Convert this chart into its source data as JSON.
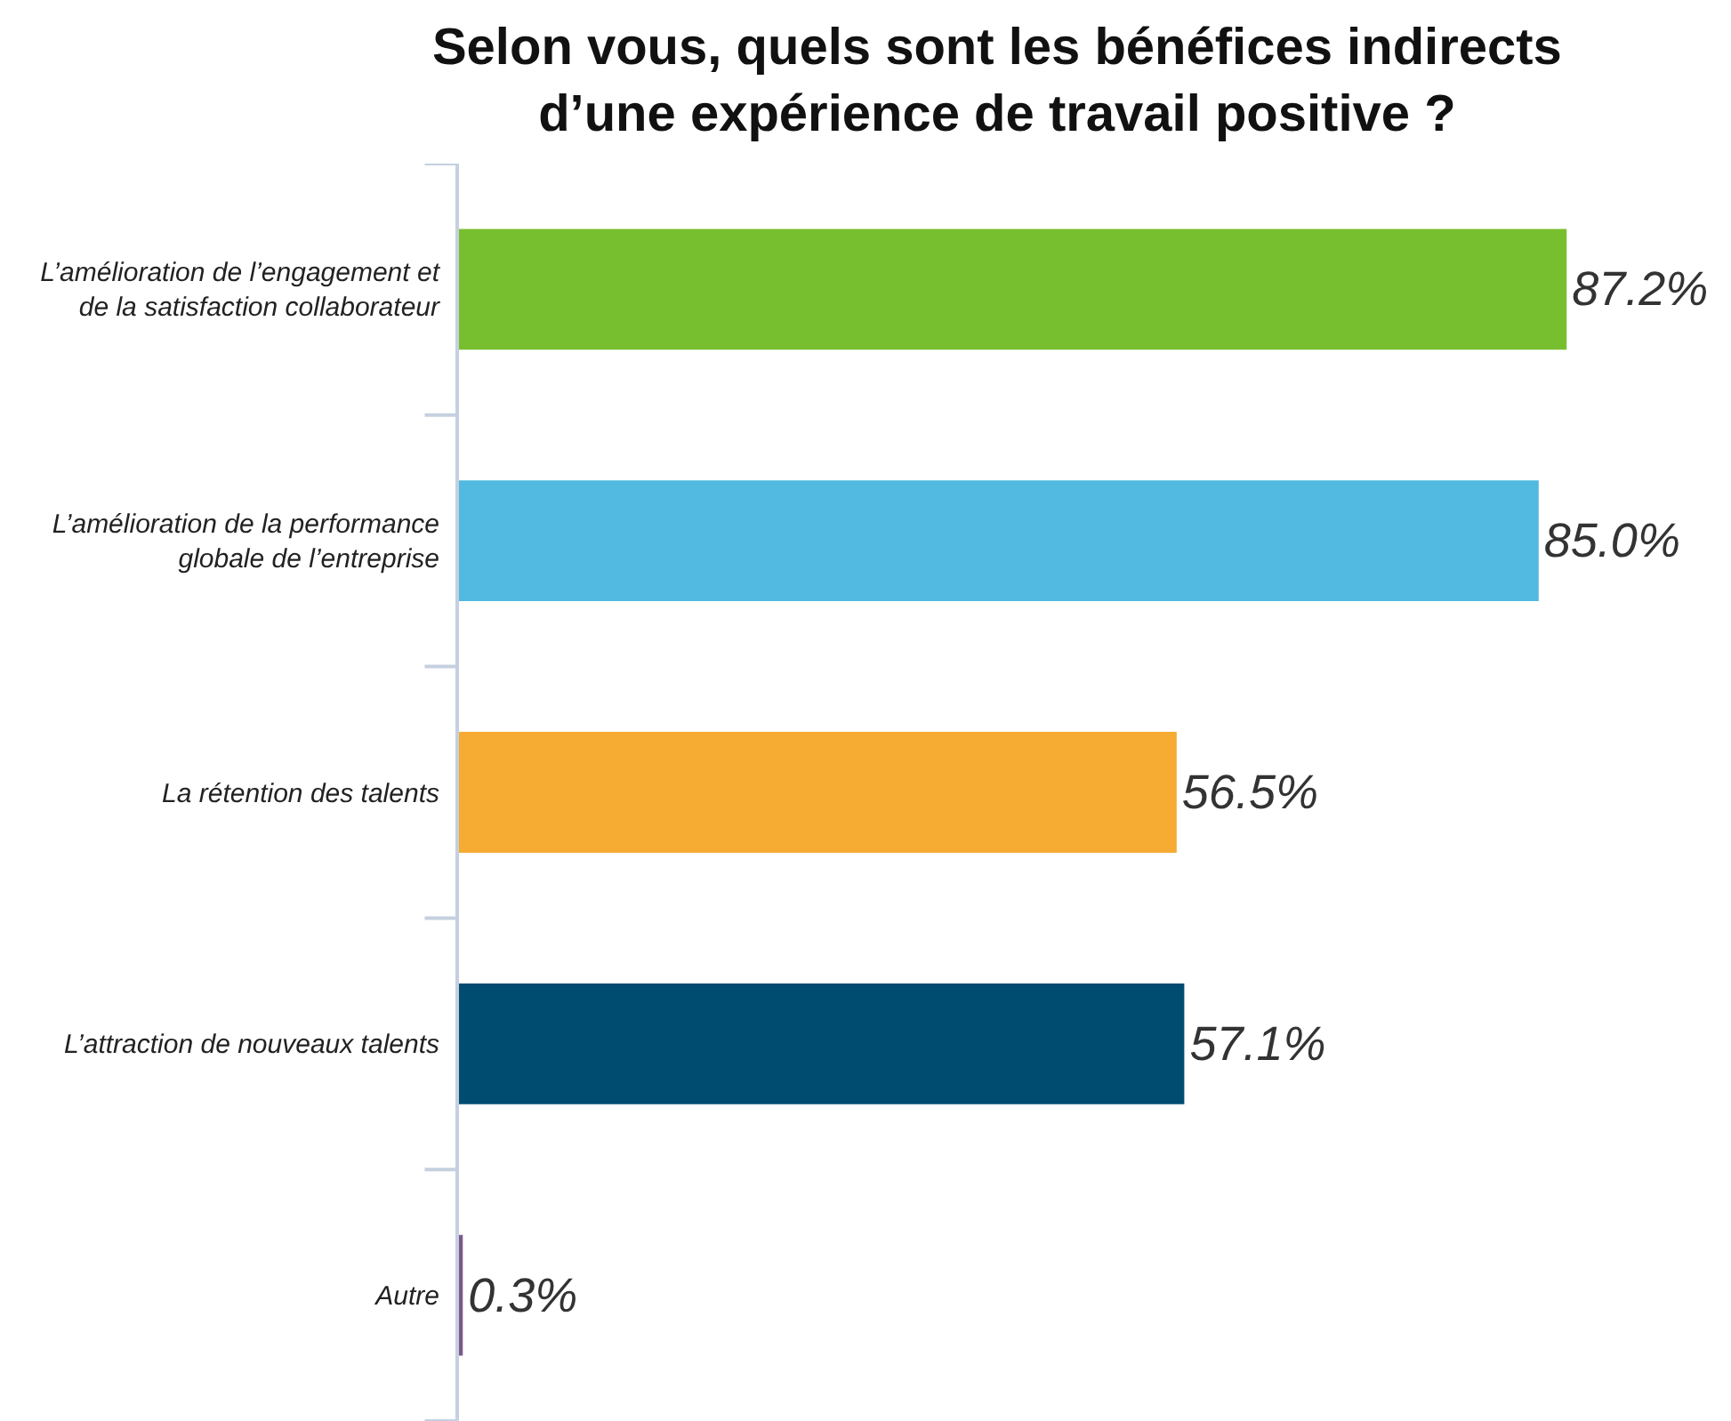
{
  "chart_data": {
    "type": "bar",
    "orientation": "horizontal",
    "title": "Selon vous, quels sont les bénéfices indirects d’une expérience de travail positive ?",
    "categories": [
      "L’amélioration de l’engagement et de la satisfaction collaborateur",
      "L’amélioration de la performance globale de l’entreprise",
      "La rétention des talents",
      "L’attraction de nouveaux talents",
      "Autre"
    ],
    "values": [
      87.2,
      85.0,
      56.5,
      57.1,
      0.3
    ],
    "value_labels": [
      "87.2%",
      "85.0%",
      "56.5%",
      "57.1%",
      "0.3%"
    ],
    "colors": [
      "#77bf2e",
      "#52b9e0",
      "#f6ab32",
      "#004c70",
      "#7b5a8a"
    ],
    "xlim": [
      0,
      100
    ],
    "tick_labels": "y"
  }
}
